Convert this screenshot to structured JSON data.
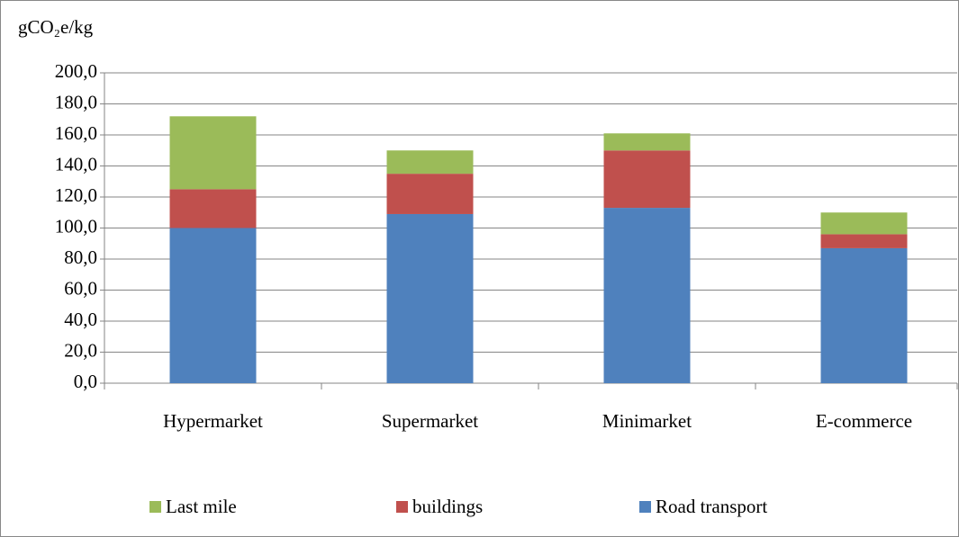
{
  "chart_data": {
    "type": "stacked_bar",
    "y_label": "gCO₂e/kg",
    "categories": [
      "Hypermarket",
      "Supermarket",
      "Minimarket",
      "E-commerce"
    ],
    "series": [
      {
        "name": "Road transport",
        "color": "#4f81bd",
        "values": [
          100,
          109,
          113,
          87
        ]
      },
      {
        "name": "buildings",
        "color": "#c0504d",
        "values": [
          25,
          26,
          37,
          9
        ]
      },
      {
        "name": "Last mile",
        "color": "#9bbb59",
        "values": [
          47,
          15,
          11,
          14
        ]
      }
    ],
    "ylim": [
      0,
      200
    ],
    "yticks": [
      {
        "value": 0,
        "label": "0,0"
      },
      {
        "value": 20,
        "label": "20,0"
      },
      {
        "value": 40,
        "label": "40,0"
      },
      {
        "value": 60,
        "label": "60,0"
      },
      {
        "value": 80,
        "label": "80,0"
      },
      {
        "value": 100,
        "label": "100,0"
      },
      {
        "value": 120,
        "label": "120,0"
      },
      {
        "value": 140,
        "label": "140,0"
      },
      {
        "value": 160,
        "label": "160,0"
      },
      {
        "value": 180,
        "label": "180,0"
      },
      {
        "value": 200,
        "label": "200,0"
      }
    ],
    "grid": true,
    "legend": "bottom"
  }
}
